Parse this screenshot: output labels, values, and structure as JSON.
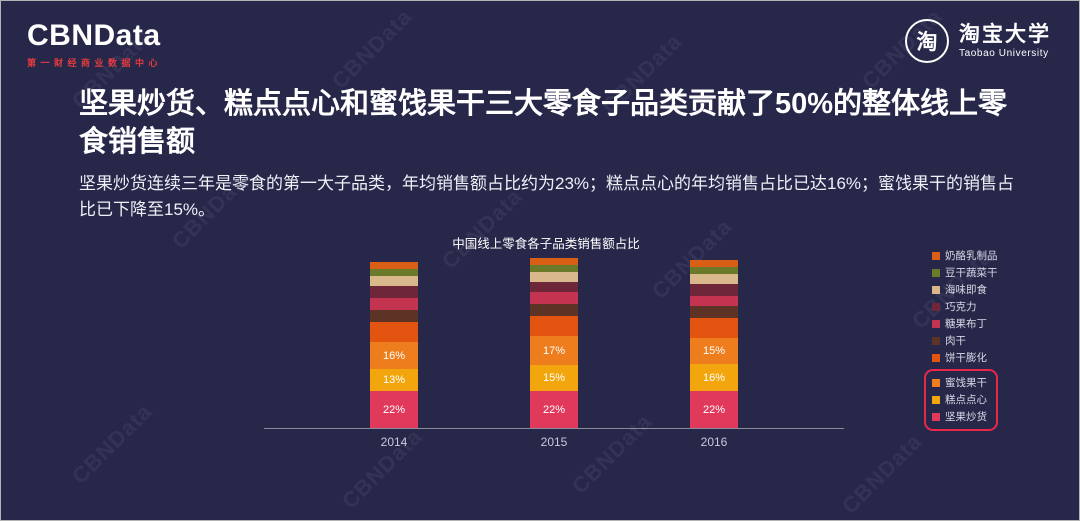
{
  "header": {
    "logo": {
      "title": "CBNData",
      "subtitle": "第一财经商业数据中心"
    },
    "partner": {
      "icon_char": "淘",
      "name": "淘宝大学",
      "name_en": "Taobao University"
    }
  },
  "headline": "坚果炒货、糕点点心和蜜饯果干三大零食子品类贡献了50%的整体线上零食销售额",
  "subtext": "坚果炒货连续三年是零食的第一大子品类，年均销售额占比约为23%；糕点点心的年均销售占比已达16%；蜜饯果干的销售占比已下降至15%。",
  "watermark": {
    "text": "CBNData"
  },
  "chart_data": {
    "type": "bar",
    "variant": "stacked",
    "title": "中国线上零食各子品类销售额占比",
    "categories": [
      "2014",
      "2015",
      "2016"
    ],
    "unit": "%",
    "legend_position": "right",
    "ylim": [
      0,
      100
    ],
    "grid": false,
    "series_order": "bottom-to-top",
    "series": [
      {
        "name": "坚果炒货",
        "color": "#e0395c",
        "values": [
          22,
          22,
          22
        ],
        "show_labels": true,
        "highlight": true
      },
      {
        "name": "糕点点心",
        "color": "#f2a50c",
        "values": [
          13,
          15,
          16
        ],
        "show_labels": true,
        "highlight": true
      },
      {
        "name": "蜜饯果干",
        "color": "#ee7d1d",
        "values": [
          16,
          17,
          15
        ],
        "show_labels": true,
        "highlight": true
      },
      {
        "name": "饼干膨化",
        "color": "#e25410",
        "values": [
          12,
          12,
          12
        ],
        "show_labels": false,
        "highlight": false
      },
      {
        "name": "肉干",
        "color": "#5c3324",
        "values": [
          7,
          7,
          7
        ],
        "show_labels": false,
        "highlight": false
      },
      {
        "name": "糖果布丁",
        "color": "#c4334f",
        "values": [
          7,
          7,
          6
        ],
        "show_labels": false,
        "highlight": false
      },
      {
        "name": "巧克力",
        "color": "#6e2639",
        "values": [
          7,
          6,
          7
        ],
        "show_labels": false,
        "highlight": false
      },
      {
        "name": "海味即食",
        "color": "#d9b88b",
        "values": [
          6,
          6,
          6
        ],
        "show_labels": false,
        "highlight": false
      },
      {
        "name": "豆干蔬菜干",
        "color": "#6a7a28",
        "values": [
          4,
          4,
          4
        ],
        "show_labels": false,
        "highlight": false
      },
      {
        "name": "奶酪乳制品",
        "color": "#d95f16",
        "values": [
          4,
          4,
          4
        ],
        "show_labels": false,
        "highlight": false
      }
    ]
  }
}
